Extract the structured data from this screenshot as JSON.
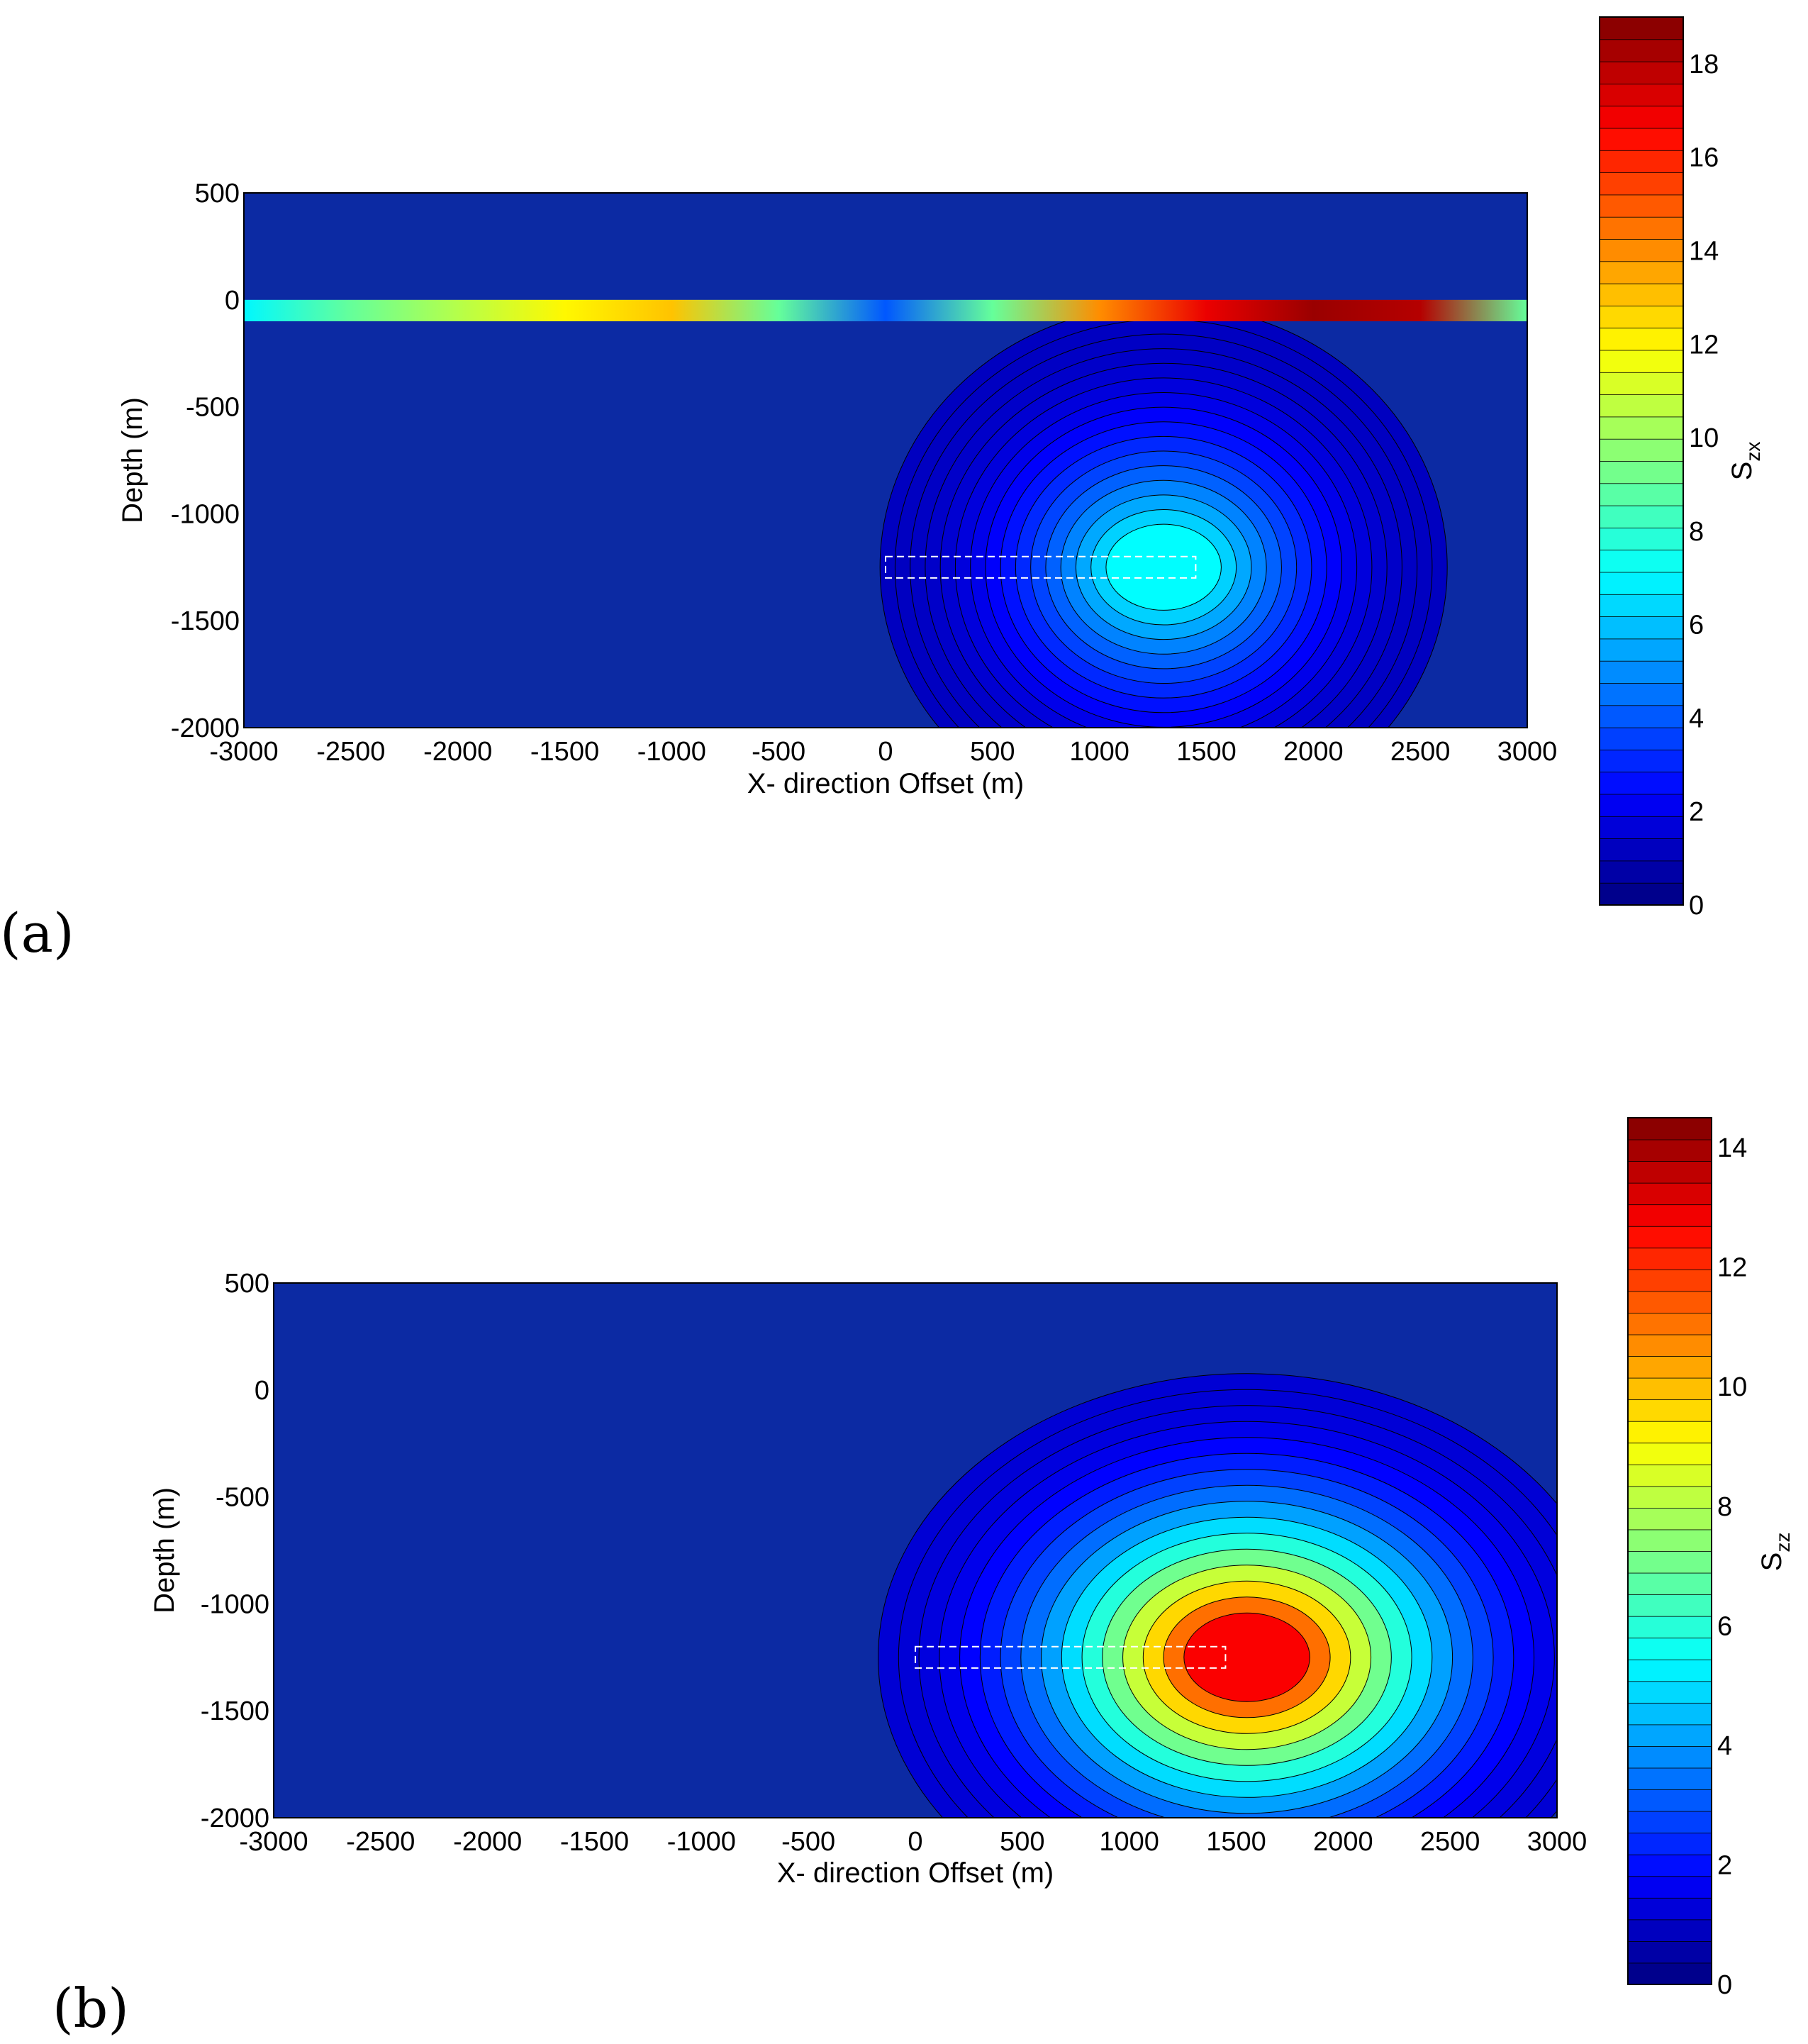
{
  "chart_data": [
    {
      "type": "heatmap",
      "panel_label": "(a)",
      "xlabel": "X- direction Offset (m)",
      "ylabel": "Depth (m)",
      "colorbar_label": "S",
      "colorbar_subscript": "zx",
      "xlim": [
        -3000,
        3000
      ],
      "ylim": [
        -2000,
        500
      ],
      "xticks": [
        -3000,
        -2500,
        -2000,
        -1500,
        -1000,
        -500,
        0,
        500,
        1000,
        1500,
        2000,
        2500,
        3000
      ],
      "yticks": [
        500,
        0,
        -500,
        -1000,
        -1500,
        -2000
      ],
      "clim": [
        0,
        19
      ],
      "cticks": [
        0,
        2,
        4,
        6,
        8,
        10,
        12,
        14,
        16,
        18
      ],
      "band": {
        "depth_top": 0,
        "depth_bottom": -100,
        "x": [
          -3000,
          -2500,
          -2000,
          -1500,
          -1000,
          -500,
          0,
          500,
          1000,
          1500,
          2000,
          2500,
          3000
        ],
        "values": [
          7,
          9,
          10.5,
          12,
          13,
          9,
          4,
          9,
          14,
          17,
          18.5,
          18,
          9
        ]
      },
      "anomaly": {
        "x": 1300,
        "depth": -1250,
        "peak": 8
      },
      "source": {
        "x_start": 0,
        "x_end": 1450,
        "depth_top": -1200,
        "depth_bottom": -1300
      }
    },
    {
      "type": "heatmap",
      "panel_label": "(b)",
      "xlabel": "X- direction Offset (m)",
      "ylabel": "Depth (m)",
      "colorbar_label": "S",
      "colorbar_subscript": "zz",
      "xlim": [
        -3000,
        3000
      ],
      "ylim": [
        -2000,
        500
      ],
      "xticks": [
        -3000,
        -2500,
        -2000,
        -1500,
        -1000,
        -500,
        0,
        500,
        1000,
        1500,
        2000,
        2500,
        3000
      ],
      "yticks": [
        500,
        0,
        -500,
        -1000,
        -1500,
        -2000
      ],
      "clim": [
        0,
        14.5
      ],
      "cticks": [
        0,
        2,
        4,
        6,
        8,
        10,
        12,
        14
      ],
      "anomaly": {
        "x": 1550,
        "depth": -1250,
        "peak": 14.5
      },
      "source": {
        "x_start": 0,
        "x_end": 1450,
        "depth_top": -1200,
        "depth_bottom": -1300
      }
    }
  ]
}
